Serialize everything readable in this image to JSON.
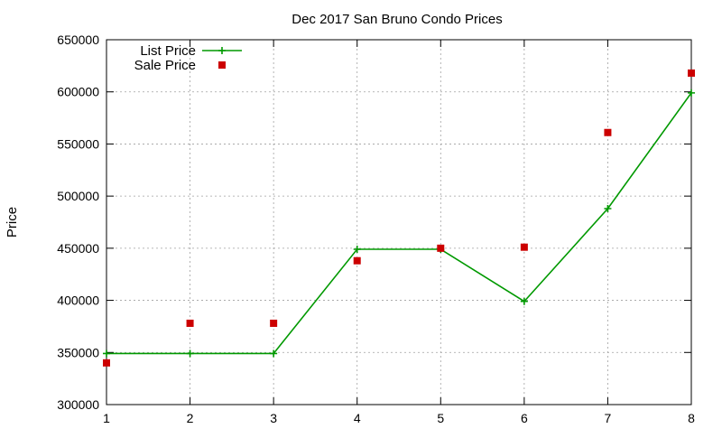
{
  "chart_data": {
    "type": "line",
    "title": "Dec 2017 San Bruno Condo Prices",
    "xlabel": "",
    "ylabel": "Price",
    "x": [
      1,
      2,
      3,
      4,
      5,
      6,
      7,
      8
    ],
    "xlim": [
      1,
      8
    ],
    "ylim": [
      300000,
      650000
    ],
    "x_ticks": [
      "1",
      "2",
      "3",
      "4",
      "5",
      "6",
      "7",
      "8"
    ],
    "y_ticks": [
      "300000",
      "350000",
      "400000",
      "450000",
      "500000",
      "550000",
      "600000",
      "650000"
    ],
    "y_tick_values": [
      300000,
      350000,
      400000,
      450000,
      500000,
      550000,
      600000,
      650000
    ],
    "grid": true,
    "legend_position": "top-left",
    "series": [
      {
        "name": "List Price",
        "type": "line",
        "marker": "plus",
        "color": "#009900",
        "values": [
          349000,
          349000,
          349000,
          449000,
          449000,
          399000,
          488000,
          599000
        ]
      },
      {
        "name": "Sale Price",
        "type": "scatter",
        "marker": "square",
        "color": "#cc0000",
        "values": [
          340000,
          378000,
          378000,
          438000,
          450000,
          451000,
          561000,
          618000
        ]
      }
    ]
  }
}
